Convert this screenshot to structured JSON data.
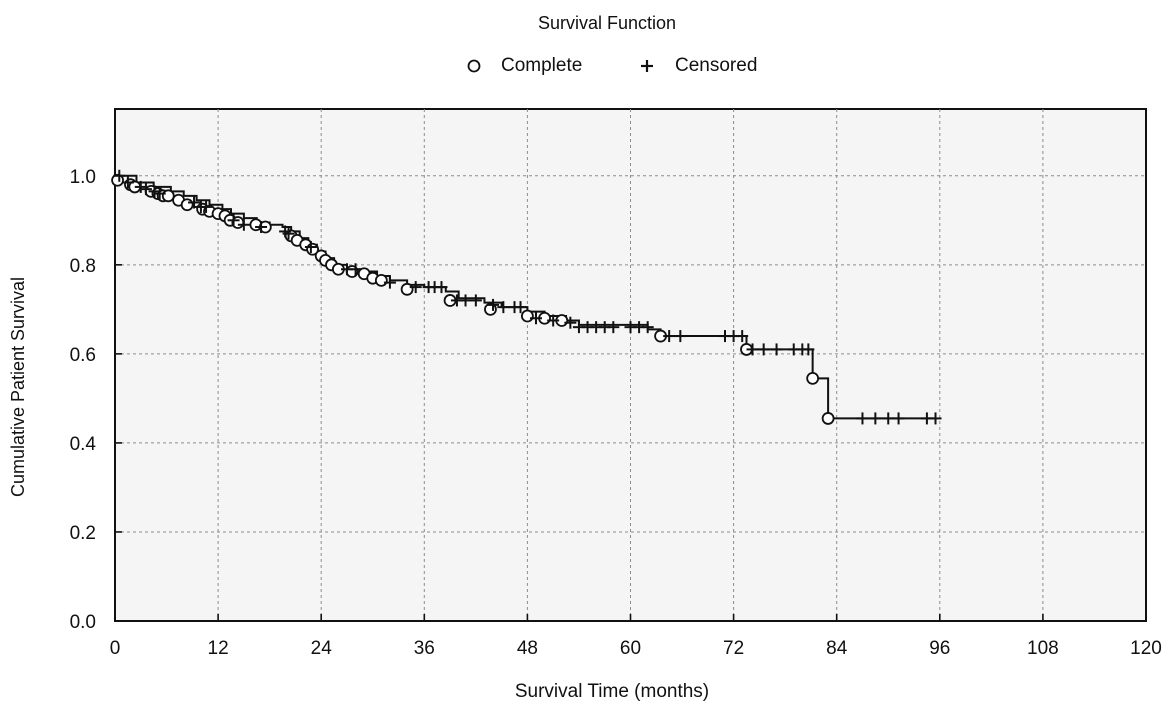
{
  "chart_data": {
    "type": "line",
    "title": "Survival Function",
    "xlabel": "Survival Time (months)",
    "ylabel": "Cumulative Patient Survival",
    "xlim": [
      0,
      120
    ],
    "ylim": [
      0,
      1.15
    ],
    "xticks": [
      0,
      12,
      24,
      36,
      48,
      60,
      72,
      84,
      96,
      108,
      120
    ],
    "yticks": [
      0.0,
      0.2,
      0.4,
      0.6,
      0.8,
      1.0
    ],
    "ytick_labels": [
      "0.0",
      "0.2",
      "0.4",
      "0.6",
      "0.8",
      "1.0"
    ],
    "grid": true,
    "legend_position": "top-center",
    "legend": [
      {
        "label": "Complete",
        "marker": "circle"
      },
      {
        "label": "Censored",
        "marker": "plus"
      }
    ],
    "series": [
      {
        "name": "Complete",
        "marker": "circle",
        "x": [
          0.3,
          1.8,
          2.3,
          4.2,
          5.0,
          5.6,
          6.2,
          7.4,
          8.4,
          10.2,
          11.0,
          12.0,
          12.8,
          13.4,
          14.3,
          16.4,
          17.5,
          20.5,
          21.2,
          22.2,
          23.0,
          24.0,
          24.5,
          25.2,
          26.0,
          27.6,
          29.0,
          30.0,
          31.0,
          34.0,
          39.0,
          43.7,
          48.0,
          50.0,
          52.0,
          63.5,
          73.5,
          81.2,
          83.0
        ],
        "y": [
          0.99,
          0.98,
          0.975,
          0.965,
          0.96,
          0.955,
          0.955,
          0.945,
          0.935,
          0.925,
          0.92,
          0.915,
          0.91,
          0.9,
          0.895,
          0.89,
          0.885,
          0.865,
          0.855,
          0.845,
          0.835,
          0.82,
          0.81,
          0.8,
          0.79,
          0.785,
          0.78,
          0.77,
          0.765,
          0.745,
          0.72,
          0.7,
          0.685,
          0.68,
          0.675,
          0.64,
          0.61,
          0.545,
          0.455
        ]
      },
      {
        "name": "Censored",
        "marker": "plus",
        "x": [
          0.5,
          1.5,
          3.0,
          3.6,
          4.6,
          5.2,
          9.2,
          10.0,
          10.6,
          13.8,
          15.0,
          17.0,
          19.8,
          20.2,
          22.8,
          27.0,
          28.0,
          32.0,
          35.0,
          36.5,
          37.2,
          38.0,
          39.8,
          40.8,
          42.0,
          44.0,
          45.2,
          46.5,
          47.2,
          49.0,
          51.0,
          53.0,
          54.0,
          55.0,
          56.0,
          57.0,
          58.0,
          60.0,
          61.0,
          62.0,
          64.5,
          65.8,
          71.0,
          72.0,
          73.0,
          74.2,
          75.5,
          77.0,
          79.0,
          80.0,
          80.7,
          87.0,
          88.5,
          90.0,
          91.2,
          94.5,
          95.5
        ],
        "y": [
          1.0,
          0.985,
          0.975,
          0.97,
          0.965,
          0.96,
          0.94,
          0.93,
          0.93,
          0.9,
          0.89,
          0.885,
          0.875,
          0.87,
          0.84,
          0.79,
          0.79,
          0.76,
          0.75,
          0.75,
          0.75,
          0.75,
          0.72,
          0.72,
          0.72,
          0.71,
          0.705,
          0.705,
          0.705,
          0.68,
          0.675,
          0.67,
          0.66,
          0.66,
          0.66,
          0.66,
          0.66,
          0.66,
          0.66,
          0.66,
          0.64,
          0.64,
          0.64,
          0.64,
          0.64,
          0.61,
          0.61,
          0.61,
          0.61,
          0.61,
          0.61,
          0.455,
          0.455,
          0.455,
          0.455,
          0.455,
          0.455
        ]
      }
    ],
    "survival_curve": {
      "x": [
        0,
        2.5,
        4.5,
        6.5,
        8.0,
        9.5,
        11.0,
        12.5,
        13.5,
        15.0,
        16.5,
        18.0,
        19.5,
        20.5,
        21.5,
        22.5,
        23.5,
        24.5,
        25.5,
        27.0,
        29.0,
        30.5,
        32.0,
        34.0,
        36.0,
        38.5,
        40.0,
        43.0,
        45.0,
        48.0,
        50.0,
        52.5,
        54.0,
        62.0,
        63.5,
        73.5,
        81.2,
        83.0,
        95.5
      ],
      "y": [
        1.0,
        0.985,
        0.975,
        0.965,
        0.955,
        0.945,
        0.935,
        0.925,
        0.915,
        0.905,
        0.895,
        0.89,
        0.885,
        0.875,
        0.86,
        0.845,
        0.83,
        0.815,
        0.8,
        0.79,
        0.785,
        0.775,
        0.765,
        0.755,
        0.75,
        0.74,
        0.725,
        0.715,
        0.705,
        0.695,
        0.685,
        0.675,
        0.665,
        0.655,
        0.64,
        0.61,
        0.545,
        0.455,
        0.455
      ]
    }
  }
}
